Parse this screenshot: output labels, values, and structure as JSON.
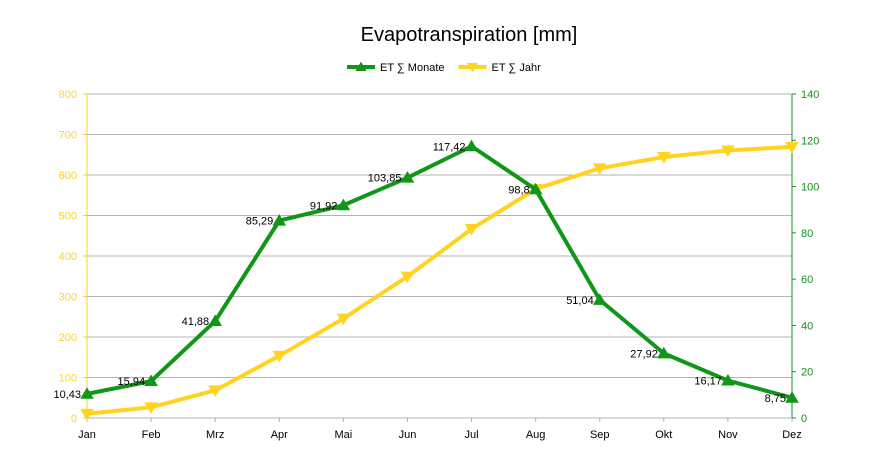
{
  "chart_data": {
    "type": "line",
    "title": "Evapotranspiration [mm]",
    "categories": [
      "Jan",
      "Feb",
      "Mrz",
      "Apr",
      "Mai",
      "Jun",
      "Jul",
      "Aug",
      "Sep",
      "Okt",
      "Nov",
      "Dez"
    ],
    "series": [
      {
        "name": "ET ∑ Monate",
        "axis": "right",
        "color": "#109618",
        "marker": "triangle-up",
        "values": [
          10.43,
          15.94,
          41.88,
          85.29,
          91.92,
          103.85,
          117.42,
          98.8,
          51.04,
          27.92,
          16.17,
          8.75
        ],
        "data_labels": [
          "10,43",
          "15,94",
          "41,88",
          "85,29",
          "91,92",
          "103,85",
          "117,42",
          "98,8",
          "51,04",
          "27,92",
          "16,17",
          "8,75"
        ]
      },
      {
        "name": "ET ∑ Jahr",
        "axis": "left",
        "color": "#ffd320",
        "marker": "triangle-down",
        "values": [
          10.43,
          26.37,
          68.25,
          153.54,
          245.46,
          349.31,
          466.73,
          565.53,
          616.57,
          644.49,
          660.66,
          669.41
        ]
      }
    ],
    "y_left": {
      "min": 0,
      "max": 800,
      "step": 100,
      "color": "#ffd320",
      "ticks": [
        "0",
        "100",
        "200",
        "300",
        "400",
        "500",
        "600",
        "700",
        "800"
      ]
    },
    "y_right": {
      "min": 0,
      "max": 140,
      "step": 20,
      "color": "#109618",
      "ticks": [
        "0",
        "20",
        "40",
        "60",
        "80",
        "100",
        "120",
        "140"
      ]
    },
    "grid": true,
    "legend_position": "top-center"
  }
}
